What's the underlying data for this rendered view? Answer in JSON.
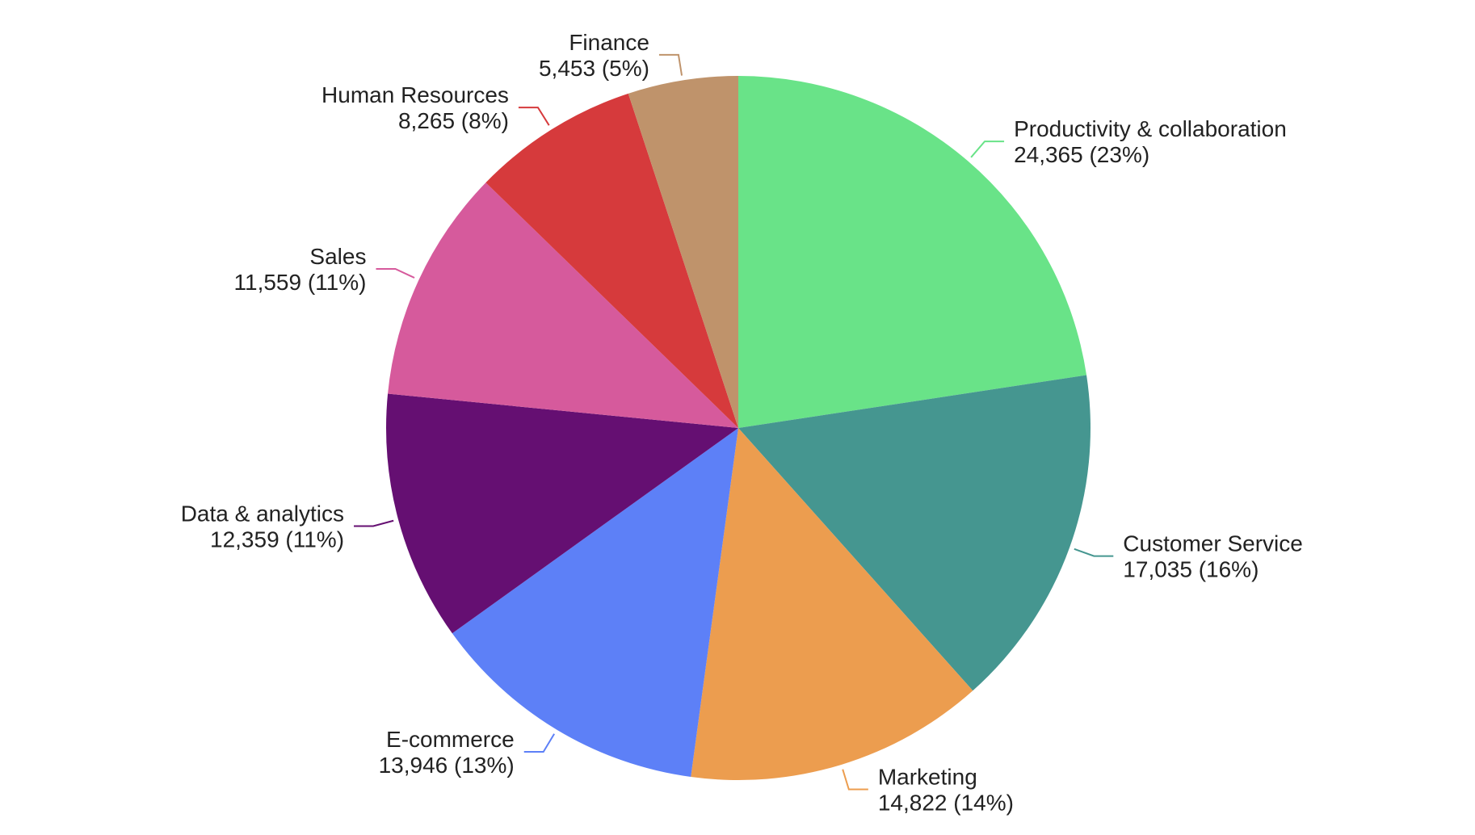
{
  "chart_data": {
    "type": "pie",
    "title": "",
    "slices": [
      {
        "label": "Productivity & collaboration",
        "value": 24365,
        "value_text": "24,365 (23%)",
        "color": "#69e388"
      },
      {
        "label": "Customer Service",
        "value": 17035,
        "value_text": "17,035 (16%)",
        "color": "#459690"
      },
      {
        "label": "Marketing",
        "value": 14822,
        "value_text": "14,822 (14%)",
        "color": "#ec9d4f"
      },
      {
        "label": "E-commerce",
        "value": 13946,
        "value_text": "13,946 (13%)",
        "color": "#5d80f7"
      },
      {
        "label": "Data & analytics",
        "value": 12359,
        "value_text": "12,359 (11%)",
        "color": "#650f72"
      },
      {
        "label": "Sales",
        "value": 11559,
        "value_text": "11,559 (11%)",
        "color": "#d65a9c"
      },
      {
        "label": "Human Resources",
        "value": 8265,
        "value_text": "8,265 (8%)",
        "color": "#d63a3c"
      },
      {
        "label": "Finance",
        "value": 5453,
        "value_text": "5,453 (5%)",
        "color": "#bf936b"
      }
    ],
    "start": "12 o'clock",
    "direction": "clockwise",
    "label_style": "outside with leader lines"
  }
}
